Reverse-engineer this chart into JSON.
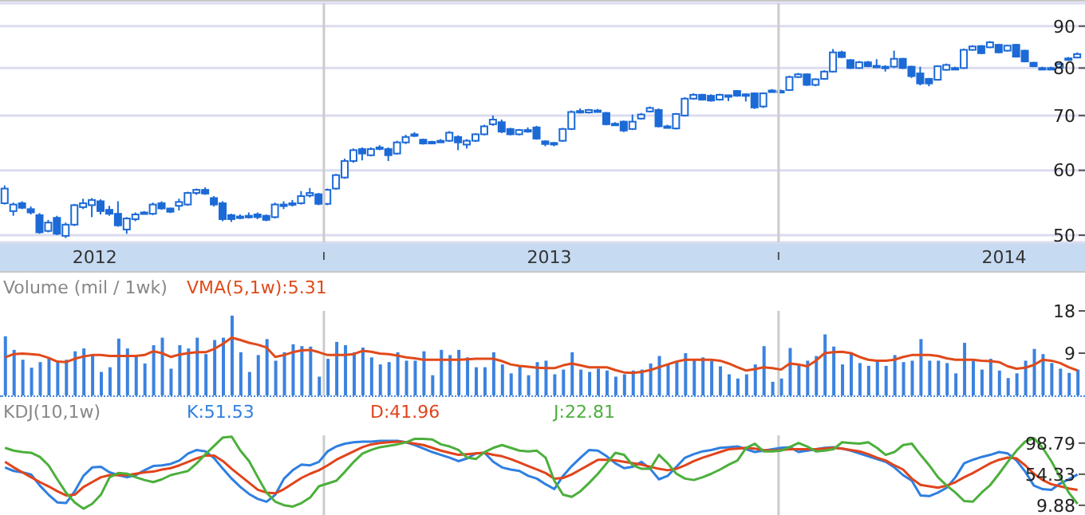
{
  "chart_data": [
    {
      "type": "candlestick",
      "log": "y",
      "grid": "y",
      "color": "#1c6ad6",
      "x": [
        "2012-04-20",
        "2012-04-27",
        "2012-05-04",
        "2012-05-11",
        "2012-05-18",
        "2012-05-25",
        "2012-06-01",
        "2012-06-08",
        "2012-06-15",
        "2012-06-22",
        "2012-06-29",
        "2012-07-06",
        "2012-07-13",
        "2012-07-20",
        "2012-07-27",
        "2012-08-03",
        "2012-08-10",
        "2012-08-17",
        "2012-08-24",
        "2012-08-31",
        "2012-09-07",
        "2012-09-14",
        "2012-09-21",
        "2012-09-28",
        "2012-10-05",
        "2012-10-12",
        "2012-10-19",
        "2012-10-26",
        "2012-11-02",
        "2012-11-09",
        "2012-11-16",
        "2012-11-23",
        "2012-11-30",
        "2012-12-07",
        "2012-12-14",
        "2012-12-21",
        "2012-12-28",
        "2013-01-04",
        "2013-01-11",
        "2013-01-18",
        "2013-01-25",
        "2013-02-01",
        "2013-02-08",
        "2013-02-15",
        "2013-02-22",
        "2013-03-01",
        "2013-03-08",
        "2013-03-15",
        "2013-03-22",
        "2013-03-29",
        "2013-04-05",
        "2013-04-12",
        "2013-04-19",
        "2013-04-26",
        "2013-05-03",
        "2013-05-10",
        "2013-05-17",
        "2013-05-24",
        "2013-05-31",
        "2013-06-07",
        "2013-06-14",
        "2013-06-21",
        "2013-06-28",
        "2013-07-05",
        "2013-07-12",
        "2013-07-19",
        "2013-07-26",
        "2013-08-02",
        "2013-08-09",
        "2013-08-16",
        "2013-08-23",
        "2013-08-30",
        "2013-09-06",
        "2013-09-13",
        "2013-09-20",
        "2013-09-27",
        "2013-10-04",
        "2013-10-11",
        "2013-10-18",
        "2013-10-25",
        "2013-11-01",
        "2013-11-08",
        "2013-11-15",
        "2013-11-22",
        "2013-11-29",
        "2013-12-06",
        "2013-12-13",
        "2013-12-20",
        "2013-12-27",
        "2014-01-03",
        "2014-01-10",
        "2014-01-17",
        "2014-01-24",
        "2014-01-31",
        "2014-02-07",
        "2014-02-14",
        "2014-02-21",
        "2014-02-28",
        "2014-03-07",
        "2014-03-14",
        "2014-03-21",
        "2014-03-28",
        "2014-04-04",
        "2014-04-11",
        "2014-04-18",
        "2014-04-25",
        "2014-05-02",
        "2014-05-09",
        "2014-05-16",
        "2014-05-23",
        "2014-05-30",
        "2014-06-06",
        "2014-06-13",
        "2014-06-20",
        "2014-06-27",
        "2014-07-04",
        "2014-07-11",
        "2014-07-18",
        "2014-07-25",
        "2014-08-01",
        "2014-08-08",
        "2014-08-15",
        "2014-08-22",
        "2014-08-29"
      ],
      "ohlc": [
        [
          54.7,
          57.5,
          54.5,
          57
        ],
        [
          53.5,
          54.8,
          52.8,
          54.5
        ],
        [
          54.7,
          55,
          53.8,
          54
        ],
        [
          53.8,
          54.2,
          53,
          53.3
        ],
        [
          52.9,
          53.2,
          50.2,
          50.4
        ],
        [
          50.6,
          52.2,
          50.4,
          51.8
        ],
        [
          52.5,
          52.8,
          50,
          50.2
        ],
        [
          49.9,
          51.8,
          49.6,
          51.5
        ],
        [
          51.5,
          54.6,
          51.3,
          54.4
        ],
        [
          54.1,
          55.4,
          53.8,
          54.7
        ],
        [
          54.4,
          55.5,
          52.6,
          55.2
        ],
        [
          55,
          55.3,
          53,
          53.5
        ],
        [
          53.7,
          54.3,
          52.8,
          53.1
        ],
        [
          53.1,
          55,
          51.2,
          51.4
        ],
        [
          50.8,
          52.6,
          50.2,
          52.4
        ],
        [
          52.3,
          53.3,
          52,
          53
        ],
        [
          53.2,
          53.5,
          53,
          53.3
        ],
        [
          53.1,
          54.8,
          52.9,
          54.5
        ],
        [
          54.7,
          55,
          53.7,
          53.9
        ],
        [
          53.9,
          54,
          53.2,
          53.4
        ],
        [
          54.3,
          55.4,
          53.6,
          54.9
        ],
        [
          54.5,
          56.5,
          54.3,
          56.3
        ],
        [
          56.3,
          57,
          56,
          56.8
        ],
        [
          56.8,
          57.2,
          56,
          56.2
        ],
        [
          55.5,
          55.8,
          54.2,
          54.5
        ],
        [
          54.7,
          55,
          52,
          52.3
        ],
        [
          52.9,
          53.1,
          51.9,
          52.3
        ],
        [
          52.6,
          53,
          52.3,
          52.7
        ],
        [
          52.8,
          53.3,
          52.4,
          52.7
        ],
        [
          53,
          53.3,
          52.3,
          52.6
        ],
        [
          52.8,
          53,
          52,
          52.2
        ],
        [
          52.6,
          54.8,
          52.4,
          54.5
        ],
        [
          54.4,
          55,
          53.8,
          54.5
        ],
        [
          54.6,
          55.2,
          54.2,
          54.7
        ],
        [
          54.7,
          56.6,
          54.5,
          55.8
        ],
        [
          55.9,
          57.1,
          55.6,
          56.3
        ],
        [
          56.1,
          56.3,
          54.4,
          54.6
        ],
        [
          54.6,
          57,
          54.4,
          56.8
        ],
        [
          57,
          59.4,
          56.8,
          59.2
        ],
        [
          58.8,
          62,
          58.6,
          61.6
        ],
        [
          61.6,
          63.8,
          61.3,
          63.5
        ],
        [
          63.7,
          64,
          61.7,
          62.9
        ],
        [
          62.6,
          64,
          62.4,
          63.7
        ],
        [
          63.9,
          64.4,
          63.5,
          64
        ],
        [
          63.7,
          64,
          61.6,
          62.6
        ],
        [
          62.9,
          65.2,
          62.7,
          64.9
        ],
        [
          64.9,
          66.3,
          64.6,
          65.9
        ],
        [
          66.3,
          66.8,
          65.9,
          66.4
        ],
        [
          65.4,
          65.6,
          64.5,
          64.7
        ],
        [
          65,
          65.2,
          64.6,
          64.9
        ],
        [
          65.1,
          65.5,
          64.9,
          65.2
        ],
        [
          65.2,
          67,
          65,
          66.7
        ],
        [
          65.9,
          66.2,
          63.5,
          64.9
        ],
        [
          64.5,
          65.5,
          63.8,
          65.2
        ],
        [
          65.2,
          66.6,
          65,
          66.4
        ],
        [
          66.4,
          68.2,
          66.2,
          67.9
        ],
        [
          68.3,
          70,
          68,
          69.2
        ],
        [
          68.7,
          69.2,
          66.6,
          66.9
        ],
        [
          67.4,
          67.6,
          66.2,
          66.4
        ],
        [
          66.4,
          67.4,
          66.2,
          67.2
        ],
        [
          67.2,
          67.7,
          66.7,
          67.2
        ],
        [
          67.7,
          68,
          65.4,
          65.6
        ],
        [
          65.1,
          65.3,
          64.2,
          64.6
        ],
        [
          64.7,
          65,
          64.2,
          64.8
        ],
        [
          65.2,
          67.6,
          65,
          67.4
        ],
        [
          67.4,
          71,
          67.2,
          70.7
        ],
        [
          70.8,
          71.4,
          70.4,
          70.9
        ],
        [
          70.6,
          71.3,
          70.4,
          71.1
        ],
        [
          71,
          71.3,
          70.7,
          71
        ],
        [
          70.5,
          70.7,
          68.1,
          68.3
        ],
        [
          68.4,
          68.7,
          68,
          68.3
        ],
        [
          68.8,
          69,
          66.8,
          67.1
        ],
        [
          67.4,
          70.2,
          67.2,
          68.8
        ],
        [
          69.4,
          70.5,
          69.2,
          70.2
        ],
        [
          70.8,
          71.8,
          70.6,
          71.5
        ],
        [
          71.1,
          71.4,
          67.7,
          67.9
        ],
        [
          67.8,
          68.2,
          67.5,
          67.9
        ],
        [
          67.5,
          70.5,
          67.3,
          70.3
        ],
        [
          70,
          73.7,
          69.8,
          73.4
        ],
        [
          73.4,
          74.5,
          73.2,
          74.2
        ],
        [
          74.2,
          74.4,
          73,
          73.2
        ],
        [
          74,
          74.3,
          72.8,
          73
        ],
        [
          73.2,
          74.4,
          73,
          74.2
        ],
        [
          74,
          74.2,
          72.9,
          74.1
        ],
        [
          75,
          75.2,
          73.8,
          74
        ],
        [
          74.3,
          74.5,
          72.8,
          74.2
        ],
        [
          74.5,
          74.7,
          71.3,
          71.6
        ],
        [
          71.8,
          74.7,
          71.5,
          74.5
        ],
        [
          75,
          75.4,
          74.7,
          75.1
        ],
        [
          74.9,
          75.3,
          74.6,
          75
        ],
        [
          75.2,
          78.3,
          75,
          78
        ],
        [
          78,
          78.9,
          77.8,
          78.6
        ],
        [
          78.6,
          78.8,
          76.1,
          76.3
        ],
        [
          76.3,
          77.7,
          76,
          77.5
        ],
        [
          77.6,
          79.5,
          77.4,
          79.2
        ],
        [
          79.2,
          84.4,
          79,
          83.6
        ],
        [
          83.6,
          84,
          82.3,
          82.5
        ],
        [
          81.8,
          82,
          79.8,
          80
        ],
        [
          80,
          81.6,
          79.8,
          81.3
        ],
        [
          81.3,
          81.6,
          80.2,
          80.4
        ],
        [
          80.5,
          82,
          80,
          80.5
        ],
        [
          80.3,
          80.6,
          79.2,
          80.3
        ],
        [
          80.3,
          84,
          80,
          82.1
        ],
        [
          82.1,
          82.3,
          79.8,
          80
        ],
        [
          80.3,
          80.5,
          77.8,
          78.2
        ],
        [
          78.8,
          80.3,
          76.2,
          76.6
        ],
        [
          77.6,
          77.8,
          76,
          76.6
        ],
        [
          77.4,
          80.6,
          77.2,
          80.4
        ],
        [
          79.6,
          81,
          79.4,
          80.7
        ],
        [
          80,
          80.3,
          79.6,
          80
        ],
        [
          80,
          84.5,
          79.8,
          84.2
        ],
        [
          84.2,
          85.3,
          84,
          85
        ],
        [
          85.1,
          85.3,
          83.2,
          83.4
        ],
        [
          84.8,
          86.3,
          84.6,
          86
        ],
        [
          85.4,
          85.6,
          83.4,
          83.6
        ],
        [
          84,
          85.4,
          83.8,
          85.2
        ],
        [
          85.4,
          85.6,
          82.4,
          82.6
        ],
        [
          84,
          84.2,
          81.3,
          81.5
        ],
        [
          81.2,
          81.4,
          80.2,
          80.4
        ],
        [
          80,
          80.3,
          79.7,
          80
        ],
        [
          79.9,
          80.3,
          79.6,
          80
        ],
        [
          80.1,
          81.1,
          79.9,
          80.9
        ],
        [
          82.1,
          82.5,
          81.8,
          82.2
        ],
        [
          82.4,
          83.6,
          82.2,
          83.2
        ]
      ],
      "xlim": [
        "2012-04-16",
        "2014-09-04"
      ],
      "xticks": [
        {
          "value": "2012-07-01",
          "label": "2012"
        },
        {
          "value": "2013-01-01",
          "label": null
        },
        {
          "value": "2013-07-01",
          "label": "2013"
        },
        {
          "value": "2014-01-01",
          "label": null
        },
        {
          "value": "2014-07-01",
          "label": "2014"
        }
      ],
      "ylim": [
        49,
        96
      ],
      "yticks": [
        50,
        60,
        70,
        80,
        90
      ],
      "ref_lines": [
        {
          "axis": "x",
          "value": "2013-01-01",
          "color": "#cccccc"
        },
        {
          "axis": "x",
          "value": "2014-01-01",
          "color": "#cccccc"
        }
      ]
    },
    {
      "type": "bar",
      "title": "Volume (mil / 1wk)",
      "legend": "top left",
      "tick_labels": "y",
      "x": [
        "2012-04-20",
        "2012-04-27",
        "2012-05-04",
        "2012-05-11",
        "2012-05-18",
        "2012-05-25",
        "2012-06-01",
        "2012-06-08",
        "2012-06-15",
        "2012-06-22",
        "2012-06-29",
        "2012-07-06",
        "2012-07-13",
        "2012-07-20",
        "2012-07-27",
        "2012-08-03",
        "2012-08-10",
        "2012-08-17",
        "2012-08-24",
        "2012-08-31",
        "2012-09-07",
        "2012-09-14",
        "2012-09-21",
        "2012-09-28",
        "2012-10-05",
        "2012-10-12",
        "2012-10-19",
        "2012-10-26",
        "2012-11-02",
        "2012-11-09",
        "2012-11-16",
        "2012-11-23",
        "2012-11-30",
        "2012-12-07",
        "2012-12-14",
        "2012-12-21",
        "2012-12-28",
        "2013-01-04",
        "2013-01-11",
        "2013-01-18",
        "2013-01-25",
        "2013-02-01",
        "2013-02-08",
        "2013-02-15",
        "2013-02-22",
        "2013-03-01",
        "2013-03-08",
        "2013-03-15",
        "2013-03-22",
        "2013-03-29",
        "2013-04-05",
        "2013-04-12",
        "2013-04-19",
        "2013-04-26",
        "2013-05-03",
        "2013-05-10",
        "2013-05-17",
        "2013-05-24",
        "2013-05-31",
        "2013-06-07",
        "2013-06-14",
        "2013-06-21",
        "2013-06-28",
        "2013-07-05",
        "2013-07-12",
        "2013-07-19",
        "2013-07-26",
        "2013-08-02",
        "2013-08-09",
        "2013-08-16",
        "2013-08-23",
        "2013-08-30",
        "2013-09-06",
        "2013-09-13",
        "2013-09-20",
        "2013-09-27",
        "2013-10-04",
        "2013-10-11",
        "2013-10-18",
        "2013-10-25",
        "2013-11-01",
        "2013-11-08",
        "2013-11-15",
        "2013-11-22",
        "2013-11-29",
        "2013-12-06",
        "2013-12-13",
        "2013-12-20",
        "2013-12-27",
        "2014-01-03",
        "2014-01-10",
        "2014-01-17",
        "2014-01-24",
        "2014-01-31",
        "2014-02-07",
        "2014-02-14",
        "2014-02-21",
        "2014-02-28",
        "2014-03-07",
        "2014-03-14",
        "2014-03-21",
        "2014-03-28",
        "2014-04-04",
        "2014-04-11",
        "2014-04-18",
        "2014-04-25",
        "2014-05-02",
        "2014-05-09",
        "2014-05-16",
        "2014-05-23",
        "2014-05-30",
        "2014-06-06",
        "2014-06-13",
        "2014-06-20",
        "2014-06-27",
        "2014-07-04",
        "2014-07-11",
        "2014-07-18",
        "2014-07-25",
        "2014-08-01",
        "2014-08-08",
        "2014-08-15",
        "2014-08-22",
        "2014-08-29"
      ],
      "xlim": [
        "2012-04-16",
        "2014-09-04"
      ],
      "ylim": [
        0,
        18
      ],
      "yticks": [
        9,
        18
      ],
      "ref_lines": [
        {
          "axis": "x",
          "value": "2013-01-01",
          "color": "#cccccc"
        },
        {
          "axis": "x",
          "value": "2014-01-01",
          "color": "#cccccc"
        }
      ],
      "series": [
        {
          "type": "bar",
          "color": "#3b82e0",
          "values": [
            12.6,
            9.7,
            7.6,
            5.9,
            7.1,
            8.1,
            7.1,
            7.6,
            9.4,
            10,
            8.6,
            5,
            6,
            12.1,
            10,
            8.6,
            6.8,
            10.7,
            12.3,
            5.7,
            10.7,
            10,
            12.3,
            8.8,
            11.8,
            12.3,
            17,
            9.2,
            5,
            8.6,
            12,
            7.4,
            9.2,
            10.9,
            10.5,
            10.4,
            4,
            7.8,
            11.4,
            10.7,
            9.2,
            10.2,
            8.1,
            6.6,
            7.1,
            9.2,
            7.4,
            7.4,
            9.4,
            4.3,
            9.7,
            8.6,
            9.7,
            8.1,
            6,
            6,
            9.2,
            6.6,
            4.7,
            6.2,
            4.3,
            7.1,
            7.4,
            4.5,
            5.5,
            9.2,
            5.5,
            5,
            5.7,
            5.3,
            4,
            4.5,
            5.3,
            5.5,
            6.8,
            8.4,
            6.6,
            7.1,
            9,
            7.6,
            8.1,
            7.4,
            6.2,
            4.5,
            3.6,
            4.5,
            6.6,
            10.5,
            2.9,
            3.6,
            10.1,
            6.6,
            7.4,
            8.4,
            13,
            10.4,
            6.6,
            9.2,
            6.9,
            6.3,
            7.4,
            6.3,
            8.6,
            7.1,
            7.4,
            12,
            7.4,
            7.4,
            6.9,
            4.7,
            11.2,
            7.4,
            5.5,
            7.8,
            5.3,
            3.7,
            4.7,
            7.4,
            9.9,
            8.8,
            6.9,
            5.7,
            4.8,
            5.5
          ]
        },
        {
          "type": "line",
          "name": "VMA(5,1w):5.31",
          "color": "#e04a1a",
          "values": [
            8.1,
            8.8,
            8.9,
            8.8,
            8.6,
            8.0,
            7.2,
            7.1,
            7.8,
            8.3,
            8.6,
            8.6,
            8.4,
            8.4,
            8.4,
            8.4,
            8.6,
            9.4,
            9.0,
            8.2,
            8.7,
            9.0,
            9.2,
            9.2,
            9.9,
            11.0,
            12.3,
            11.8,
            11.2,
            10.8,
            10.2,
            8.2,
            8.6,
            9.2,
            9.6,
            9.7,
            9.2,
            8.6,
            8.6,
            8.6,
            8.8,
            9.5,
            9.3,
            8.9,
            8.8,
            8.5,
            8.1,
            7.9,
            7.6,
            7.6,
            7.6,
            7.6,
            7.6,
            7.7,
            7.8,
            7.8,
            7.8,
            7.3,
            6.6,
            6.3,
            6.1,
            5.9,
            5.8,
            5.8,
            6.4,
            6.8,
            6.4,
            6.0,
            6.0,
            6.0,
            5.4,
            4.9,
            4.8,
            5.0,
            5.4,
            6.0,
            6.6,
            7.2,
            7.6,
            7.6,
            7.6,
            7.6,
            7.4,
            6.8,
            6.0,
            5.3,
            5.6,
            6.0,
            5.8,
            5.5,
            6.8,
            6.6,
            6.2,
            7.4,
            9.0,
            9.2,
            9.3,
            9.0,
            8.2,
            7.6,
            7.4,
            7.4,
            7.6,
            8.2,
            8.6,
            8.6,
            8.6,
            8.4,
            7.9,
            7.6,
            7.6,
            7.6,
            7.4,
            7.3,
            7.1,
            6.2,
            5.7,
            5.9,
            6.5,
            7.6,
            7.4,
            6.9,
            6.0,
            5.31
          ]
        }
      ]
    },
    {
      "type": "line",
      "title": "KDJ(10,1w)",
      "legend": "top left",
      "tick_labels": "y",
      "x": [
        "2012-04-20",
        "2012-04-27",
        "2012-05-04",
        "2012-05-11",
        "2012-05-18",
        "2012-05-25",
        "2012-06-01",
        "2012-06-08",
        "2012-06-15",
        "2012-06-22",
        "2012-06-29",
        "2012-07-06",
        "2012-07-13",
        "2012-07-20",
        "2012-07-27",
        "2012-08-03",
        "2012-08-10",
        "2012-08-17",
        "2012-08-24",
        "2012-08-31",
        "2012-09-07",
        "2012-09-14",
        "2012-09-21",
        "2012-09-28",
        "2012-10-05",
        "2012-10-12",
        "2012-10-19",
        "2012-10-26",
        "2012-11-02",
        "2012-11-09",
        "2012-11-16",
        "2012-11-23",
        "2012-11-30",
        "2012-12-07",
        "2012-12-14",
        "2012-12-21",
        "2012-12-28",
        "2013-01-04",
        "2013-01-11",
        "2013-01-18",
        "2013-01-25",
        "2013-02-01",
        "2013-02-08",
        "2013-02-15",
        "2013-02-22",
        "2013-03-01",
        "2013-03-08",
        "2013-03-15",
        "2013-03-22",
        "2013-03-29",
        "2013-04-05",
        "2013-04-12",
        "2013-04-19",
        "2013-04-26",
        "2013-05-03",
        "2013-05-10",
        "2013-05-17",
        "2013-05-24",
        "2013-05-31",
        "2013-06-07",
        "2013-06-14",
        "2013-06-21",
        "2013-06-28",
        "2013-07-05",
        "2013-07-12",
        "2013-07-19",
        "2013-07-26",
        "2013-08-02",
        "2013-08-09",
        "2013-08-16",
        "2013-08-23",
        "2013-08-30",
        "2013-09-06",
        "2013-09-13",
        "2013-09-20",
        "2013-09-27",
        "2013-10-04",
        "2013-10-11",
        "2013-10-18",
        "2013-10-25",
        "2013-11-01",
        "2013-11-08",
        "2013-11-15",
        "2013-11-22",
        "2013-11-29",
        "2013-12-06",
        "2013-12-13",
        "2013-12-20",
        "2013-12-27",
        "2014-01-03",
        "2014-01-10",
        "2014-01-17",
        "2014-01-24",
        "2014-01-31",
        "2014-02-07",
        "2014-02-14",
        "2014-02-21",
        "2014-02-28",
        "2014-03-07",
        "2014-03-14",
        "2014-03-21",
        "2014-03-28",
        "2014-04-04",
        "2014-04-11",
        "2014-04-18",
        "2014-04-25",
        "2014-05-02",
        "2014-05-09",
        "2014-05-16",
        "2014-05-23",
        "2014-05-30",
        "2014-06-06",
        "2014-06-13",
        "2014-06-20",
        "2014-06-27",
        "2014-07-04",
        "2014-07-11",
        "2014-07-18",
        "2014-07-25",
        "2014-08-01",
        "2014-08-08",
        "2014-08-15",
        "2014-08-22",
        "2014-08-29"
      ],
      "xlim": [
        "2012-04-16",
        "2014-09-04"
      ],
      "ylim": [
        -4,
        110
      ],
      "yticks": [
        9.88,
        54.33,
        98.79
      ],
      "ref_lines": [
        {
          "axis": "x",
          "value": "2013-01-01",
          "color": "#cccccc"
        },
        {
          "axis": "x",
          "value": "2014-01-01",
          "color": "#cccccc"
        }
      ],
      "series": [
        {
          "name": "K:51.53",
          "color": "#2f7fe0",
          "values": [
            64,
            59,
            57,
            54,
            38,
            25,
            14,
            13,
            30,
            52,
            64,
            65,
            57,
            53,
            50,
            53,
            60,
            66,
            67,
            69,
            74,
            84,
            89,
            87,
            77,
            62,
            48,
            36,
            26,
            19,
            15,
            25,
            48,
            60,
            68,
            67,
            72,
            87,
            94,
            98,
            100,
            101,
            101,
            102,
            102,
            102,
            100,
            96,
            91,
            86,
            82,
            78,
            73,
            77,
            84,
            85,
            72,
            64,
            61,
            59,
            52,
            48,
            40,
            33,
            52,
            66,
            78,
            89,
            88,
            80,
            70,
            63,
            65,
            72,
            62,
            47,
            52,
            65,
            78,
            83,
            87,
            89,
            92,
            93,
            94,
            90,
            86,
            88,
            90,
            92,
            93,
            86,
            88,
            90,
            92,
            93,
            91,
            88,
            84,
            80,
            76,
            72,
            64,
            53,
            45,
            24,
            23,
            28,
            35,
            50,
            70,
            75,
            79,
            82,
            86,
            84,
            74,
            58,
            38,
            33,
            32,
            41,
            47,
            54
          ]
        },
        {
          "name": "D:41.96",
          "color": "#e0441c",
          "values": [
            72,
            64,
            57,
            50,
            43,
            37,
            30,
            24,
            25,
            36,
            43,
            50,
            53,
            53,
            53,
            55,
            57,
            58,
            61,
            63,
            67,
            72,
            77,
            81,
            81,
            73,
            62,
            52,
            42,
            32,
            28,
            27,
            33,
            41,
            49,
            55,
            60,
            67,
            75,
            81,
            87,
            93,
            97,
            99,
            100,
            101,
            100,
            98,
            96,
            92,
            88,
            85,
            82,
            83,
            84,
            85,
            82,
            80,
            76,
            71,
            66,
            61,
            56,
            48,
            49,
            54,
            61,
            68,
            75,
            75,
            74,
            72,
            70,
            68,
            65,
            62,
            60,
            62,
            67,
            73,
            78,
            82,
            86,
            90,
            91,
            92,
            91,
            89,
            88,
            89,
            90,
            90,
            90,
            90,
            91,
            92,
            91,
            89,
            87,
            83,
            78,
            74,
            67,
            61,
            48,
            39,
            37,
            35,
            38,
            43,
            50,
            56,
            63,
            70,
            75,
            78,
            77,
            67,
            55,
            46,
            40,
            37,
            34,
            32
          ]
        },
        {
          "name": "J:22.81",
          "color": "#4caf3c",
          "values": [
            92,
            88,
            86,
            85,
            79,
            67,
            47,
            28,
            14,
            5,
            12,
            25,
            50,
            56,
            55,
            50,
            46,
            43,
            47,
            53,
            56,
            59,
            70,
            83,
            95,
            107,
            108,
            88,
            73,
            50,
            28,
            15,
            10,
            8,
            13,
            21,
            37,
            41,
            45,
            58,
            72,
            84,
            89,
            93,
            95,
            97,
            100,
            105,
            105,
            104,
            97,
            94,
            89,
            78,
            76,
            86,
            92,
            96,
            92,
            88,
            87,
            88,
            78,
            45,
            25,
            22,
            30,
            42,
            55,
            70,
            85,
            82,
            67,
            62,
            62,
            82,
            70,
            55,
            48,
            46,
            50,
            55,
            61,
            68,
            74,
            92,
            98,
            87,
            87,
            88,
            93,
            99,
            94,
            87,
            88,
            90,
            100,
            99,
            98,
            100,
            92,
            82,
            86,
            96,
            98,
            82,
            67,
            50,
            38,
            28,
            16,
            15,
            28,
            39,
            55,
            72,
            88,
            101,
            106,
            92,
            73,
            50,
            28,
            12
          ]
        }
      ]
    }
  ]
}
